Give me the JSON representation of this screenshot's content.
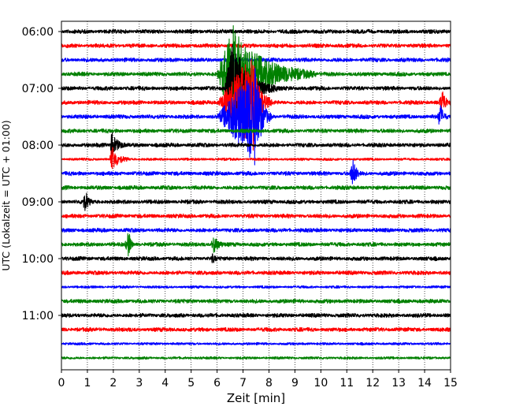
{
  "chart_data": {
    "type": "line",
    "xlabel": "Zeit  [min]",
    "ylabel": "UTC (Lokalzeit = UTC + 01:00)",
    "xlim": [
      0,
      15
    ],
    "x_ticks": [
      "0",
      "1",
      "2",
      "3",
      "4",
      "5",
      "6",
      "7",
      "8",
      "9",
      "10",
      "11",
      "12",
      "13",
      "14",
      "15"
    ],
    "y_ticks": [
      "06:00",
      "07:00",
      "08:00",
      "09:00",
      "10:00",
      "11:00"
    ],
    "grid": "vertical dotted",
    "trace_count": 24,
    "trace_interval_minutes": 15,
    "first_trace_time": "06:00",
    "color_cycle": [
      "#000000",
      "#ff0000",
      "#0000ff",
      "#008000"
    ],
    "events": [
      {
        "trace_time": "06:45",
        "start_min": 6.0,
        "peak_min": 6.6,
        "end_min": 9.8,
        "amplitude": "large",
        "description": "teleseismic earthquake"
      },
      {
        "trace_time": "07:00",
        "start_min": 6.3,
        "peak_min": 6.6,
        "end_min": 8.3,
        "amplitude": "large",
        "description": "earthquake continuation"
      },
      {
        "trace_time": "07:15",
        "start_min": 6.0,
        "peak_min": 7.4,
        "end_min": 8.1,
        "amplitude": "large",
        "description": "earthquake continuation"
      },
      {
        "trace_time": "07:30",
        "start_min": 6.0,
        "peak_min": 7.5,
        "end_min": 8.1,
        "amplitude": "large",
        "description": "earthquake coda"
      },
      {
        "trace_time": "07:15",
        "start_min": 14.55,
        "peak_min": 14.7,
        "end_min": 15.0,
        "amplitude": "spike",
        "description": "local spike"
      },
      {
        "trace_time": "07:30",
        "start_min": 14.5,
        "peak_min": 14.6,
        "end_min": 14.9,
        "amplitude": "spike",
        "description": "spike"
      },
      {
        "trace_time": "08:00",
        "start_min": 1.85,
        "peak_min": 1.95,
        "end_min": 2.5,
        "amplitude": "spike",
        "description": "spike"
      },
      {
        "trace_time": "08:15",
        "start_min": 1.85,
        "peak_min": 1.95,
        "end_min": 2.6,
        "amplitude": "spike",
        "description": "spike"
      },
      {
        "trace_time": "08:30",
        "start_min": 11.1,
        "peak_min": 11.25,
        "end_min": 11.6,
        "amplitude": "spike",
        "description": "spike"
      },
      {
        "trace_time": "09:00",
        "start_min": 0.75,
        "peak_min": 0.95,
        "end_min": 1.2,
        "amplitude": "medium",
        "description": "local event"
      },
      {
        "trace_time": "09:45",
        "start_min": 2.45,
        "peak_min": 2.6,
        "end_min": 2.8,
        "amplitude": "spike",
        "description": "spike"
      },
      {
        "trace_time": "09:45",
        "start_min": 5.75,
        "peak_min": 5.9,
        "end_min": 6.3,
        "amplitude": "medium",
        "description": "local event"
      },
      {
        "trace_time": "10:00",
        "start_min": 5.75,
        "peak_min": 5.85,
        "end_min": 6.0,
        "amplitude": "small",
        "description": "local event tail"
      }
    ]
  }
}
